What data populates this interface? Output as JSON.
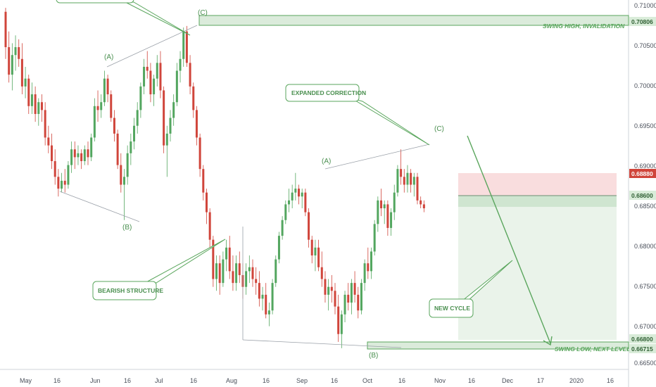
{
  "chart_data": {
    "type": "candlestick",
    "title": "",
    "y_ticks": [
      "0.71000",
      "0.70500",
      "0.70000",
      "0.69500",
      "0.69000",
      "0.68500",
      "0.68000",
      "0.67500",
      "0.67000",
      "0.66500"
    ],
    "ylim": [
      0.6645,
      0.7115
    ],
    "x_ticks": [
      "May",
      "16",
      "Jun",
      "16",
      "Jul",
      "16",
      "Aug",
      "16",
      "Sep",
      "16",
      "Oct",
      "16",
      "Nov",
      "16",
      "Dec",
      "17",
      "2020",
      "16"
    ],
    "price_tags": [
      {
        "text": "0.70806",
        "value": 0.70806,
        "style": "zone"
      },
      {
        "text": "0.68880",
        "value": 0.6888,
        "style": "red"
      },
      {
        "text": "0.68600",
        "value": 0.686,
        "style": "zone"
      },
      {
        "text": "0.66800",
        "value": 0.668,
        "style": "zone"
      },
      {
        "text": "0.66715",
        "value": 0.66715,
        "style": "zone"
      }
    ],
    "zone_labels": {
      "top": "SWING HIGH, INVALIDATION",
      "bottom": "SWING LOW, NEXT LEVEL"
    },
    "wave_labels": [
      "(A)",
      "(B)",
      "(C)",
      "(A)",
      "(B)",
      "(C)"
    ],
    "callouts": [
      "EXPANDED CORRECTION",
      "BEARISH STRUCTURE",
      "NEW CYCLE"
    ],
    "series": [
      {
        "values": [
          [
            0.71,
            0.7105,
            0.704,
            0.7055
          ],
          [
            0.7055,
            0.7075,
            0.701,
            0.702
          ],
          [
            0.702,
            0.706,
            0.7,
            0.7045
          ],
          [
            0.7045,
            0.707,
            0.7025,
            0.7055
          ],
          [
            0.7055,
            0.7065,
            0.703,
            0.704
          ],
          [
            0.704,
            0.706,
            0.6995,
            0.7005
          ],
          [
            0.7005,
            0.703,
            0.699,
            0.7015
          ],
          [
            0.7015,
            0.702,
            0.697,
            0.698
          ],
          [
            0.698,
            0.701,
            0.697,
            0.6995
          ],
          [
            0.6995,
            0.7005,
            0.696,
            0.697
          ],
          [
            0.697,
            0.699,
            0.6955,
            0.6985
          ],
          [
            0.6985,
            0.6995,
            0.696,
            0.6975
          ],
          [
            0.6975,
            0.6985,
            0.693,
            0.694
          ],
          [
            0.694,
            0.6955,
            0.692,
            0.693
          ],
          [
            0.693,
            0.6945,
            0.69,
            0.691
          ],
          [
            0.691,
            0.6925,
            0.688,
            0.689
          ],
          [
            0.689,
            0.69,
            0.6865,
            0.6875
          ],
          [
            0.6875,
            0.6895,
            0.687,
            0.6885
          ],
          [
            0.6885,
            0.69,
            0.687,
            0.688
          ],
          [
            0.688,
            0.691,
            0.6875,
            0.6905
          ],
          [
            0.6905,
            0.6935,
            0.6895,
            0.6925
          ],
          [
            0.6925,
            0.6935,
            0.69,
            0.6915
          ],
          [
            0.6915,
            0.693,
            0.6905,
            0.692
          ],
          [
            0.692,
            0.6925,
            0.69,
            0.691
          ],
          [
            0.691,
            0.693,
            0.6905,
            0.6925
          ],
          [
            0.6925,
            0.6935,
            0.6905,
            0.6915
          ],
          [
            0.6915,
            0.6945,
            0.691,
            0.694
          ],
          [
            0.694,
            0.699,
            0.6935,
            0.698
          ],
          [
            0.698,
            0.7,
            0.696,
            0.6975
          ],
          [
            0.6975,
            0.6995,
            0.6965,
            0.6985
          ],
          [
            0.6985,
            0.7025,
            0.698,
            0.7015
          ],
          [
            0.7015,
            0.702,
            0.6985,
            0.6995
          ],
          [
            0.6995,
            0.7,
            0.696,
            0.6965
          ],
          [
            0.6965,
            0.6975,
            0.6935,
            0.6945
          ],
          [
            0.6945,
            0.695,
            0.69,
            0.6905
          ],
          [
            0.6905,
            0.692,
            0.687,
            0.688
          ],
          [
            0.688,
            0.69,
            0.6835,
            0.689
          ],
          [
            0.689,
            0.693,
            0.688,
            0.692
          ],
          [
            0.692,
            0.6945,
            0.6905,
            0.6935
          ],
          [
            0.6935,
            0.6965,
            0.6925,
            0.6955
          ],
          [
            0.6955,
            0.6985,
            0.6945,
            0.6975
          ],
          [
            0.6975,
            0.701,
            0.6965,
            0.7005
          ],
          [
            0.7005,
            0.704,
            0.6995,
            0.703
          ],
          [
            0.703,
            0.705,
            0.7015,
            0.7025
          ],
          [
            0.7025,
            0.7035,
            0.6985,
            0.6995
          ],
          [
            0.6995,
            0.702,
            0.698,
            0.7015
          ],
          [
            0.7015,
            0.7045,
            0.7005,
            0.7035
          ],
          [
            0.7035,
            0.705,
            0.699,
            0.7
          ],
          [
            0.7,
            0.7005,
            0.692,
            0.693
          ],
          [
            0.693,
            0.6955,
            0.689,
            0.6945
          ],
          [
            0.6945,
            0.6975,
            0.6935,
            0.6965
          ],
          [
            0.6965,
            0.6995,
            0.6955,
            0.6985
          ],
          [
            0.6985,
            0.7035,
            0.698,
            0.7025
          ],
          [
            0.7025,
            0.705,
            0.701,
            0.704
          ],
          [
            0.704,
            0.708,
            0.703,
            0.7075
          ],
          [
            0.7075,
            0.7082,
            0.703,
            0.7035
          ],
          [
            0.7035,
            0.7045,
            0.6995,
            0.7005
          ],
          [
            0.7005,
            0.701,
            0.6965,
            0.6975
          ],
          [
            0.6975,
            0.698,
            0.693,
            0.694
          ],
          [
            0.694,
            0.6945,
            0.689,
            0.69
          ],
          [
            0.69,
            0.6905,
            0.686,
            0.687
          ],
          [
            0.687,
            0.6875,
            0.683,
            0.6845
          ],
          [
            0.6845,
            0.685,
            0.68,
            0.681
          ],
          [
            0.681,
            0.6815,
            0.675,
            0.676
          ],
          [
            0.676,
            0.679,
            0.6745,
            0.678
          ],
          [
            0.678,
            0.679,
            0.674,
            0.6755
          ],
          [
            0.6755,
            0.6795,
            0.675,
            0.6785
          ],
          [
            0.6785,
            0.681,
            0.677,
            0.68
          ],
          [
            0.68,
            0.6815,
            0.676,
            0.677
          ],
          [
            0.677,
            0.679,
            0.6745,
            0.6755
          ],
          [
            0.6755,
            0.679,
            0.6745,
            0.678
          ],
          [
            0.678,
            0.6795,
            0.6755,
            0.6765
          ],
          [
            0.6765,
            0.678,
            0.6735,
            0.675
          ],
          [
            0.675,
            0.678,
            0.674,
            0.677
          ],
          [
            0.677,
            0.679,
            0.6755,
            0.6775
          ],
          [
            0.6775,
            0.6785,
            0.675,
            0.676
          ],
          [
            0.676,
            0.6775,
            0.674,
            0.6755
          ],
          [
            0.6755,
            0.677,
            0.6725,
            0.6735
          ],
          [
            0.6735,
            0.675,
            0.672,
            0.674
          ],
          [
            0.674,
            0.6755,
            0.671,
            0.6715
          ],
          [
            0.6715,
            0.673,
            0.67,
            0.672
          ],
          [
            0.672,
            0.676,
            0.6715,
            0.6755
          ],
          [
            0.6755,
            0.679,
            0.675,
            0.6785
          ],
          [
            0.6785,
            0.682,
            0.678,
            0.6815
          ],
          [
            0.6815,
            0.684,
            0.681,
            0.6835
          ],
          [
            0.6835,
            0.686,
            0.683,
            0.6855
          ],
          [
            0.6855,
            0.6875,
            0.6845,
            0.686
          ],
          [
            0.686,
            0.688,
            0.685,
            0.687
          ],
          [
            0.687,
            0.6895,
            0.686,
            0.6875
          ],
          [
            0.6875,
            0.688,
            0.6855,
            0.6865
          ],
          [
            0.6865,
            0.6875,
            0.685,
            0.687
          ],
          [
            0.687,
            0.6875,
            0.684,
            0.6845
          ],
          [
            0.6845,
            0.685,
            0.68,
            0.681
          ],
          [
            0.681,
            0.6815,
            0.678,
            0.679
          ],
          [
            0.679,
            0.681,
            0.677,
            0.68
          ],
          [
            0.68,
            0.681,
            0.677,
            0.6775
          ],
          [
            0.6775,
            0.6795,
            0.675,
            0.676
          ],
          [
            0.676,
            0.677,
            0.673,
            0.674
          ],
          [
            0.674,
            0.676,
            0.672,
            0.675
          ],
          [
            0.675,
            0.6765,
            0.673,
            0.6745
          ],
          [
            0.6745,
            0.6755,
            0.6715,
            0.6725
          ],
          [
            0.6725,
            0.674,
            0.668,
            0.669
          ],
          [
            0.669,
            0.672,
            0.6672,
            0.6715
          ],
          [
            0.6715,
            0.6745,
            0.6705,
            0.674
          ],
          [
            0.674,
            0.6755,
            0.672,
            0.673
          ],
          [
            0.673,
            0.676,
            0.6715,
            0.6755
          ],
          [
            0.6755,
            0.677,
            0.673,
            0.674
          ],
          [
            0.674,
            0.675,
            0.671,
            0.672
          ],
          [
            0.672,
            0.676,
            0.6715,
            0.6755
          ],
          [
            0.6755,
            0.6785,
            0.6745,
            0.678
          ],
          [
            0.678,
            0.68,
            0.676,
            0.677
          ],
          [
            0.677,
            0.68,
            0.676,
            0.6795
          ],
          [
            0.6795,
            0.6835,
            0.679,
            0.683
          ],
          [
            0.683,
            0.6865,
            0.682,
            0.686
          ],
          [
            0.686,
            0.6875,
            0.684,
            0.685
          ],
          [
            0.685,
            0.686,
            0.683,
            0.6855
          ],
          [
            0.6855,
            0.686,
            0.6815,
            0.6825
          ],
          [
            0.6825,
            0.685,
            0.6815,
            0.6845
          ],
          [
            0.6845,
            0.688,
            0.6835,
            0.687
          ],
          [
            0.687,
            0.6905,
            0.6865,
            0.69
          ],
          [
            0.69,
            0.6925,
            0.688,
            0.689
          ],
          [
            0.689,
            0.69,
            0.687,
            0.688
          ],
          [
            0.688,
            0.6905,
            0.687,
            0.6895
          ],
          [
            0.6895,
            0.69,
            0.687,
            0.688
          ],
          [
            0.688,
            0.6895,
            0.6865,
            0.689
          ],
          [
            0.689,
            0.6895,
            0.6855,
            0.686
          ],
          [
            0.686,
            0.6865,
            0.685,
            0.6855
          ],
          [
            0.6855,
            0.686,
            0.6845,
            0.685
          ]
        ]
      }
    ],
    "colors": {
      "up": "#53a65f",
      "down": "#d0453b",
      "zone": "#5aa65d",
      "tag_red": "#d0453b"
    }
  }
}
